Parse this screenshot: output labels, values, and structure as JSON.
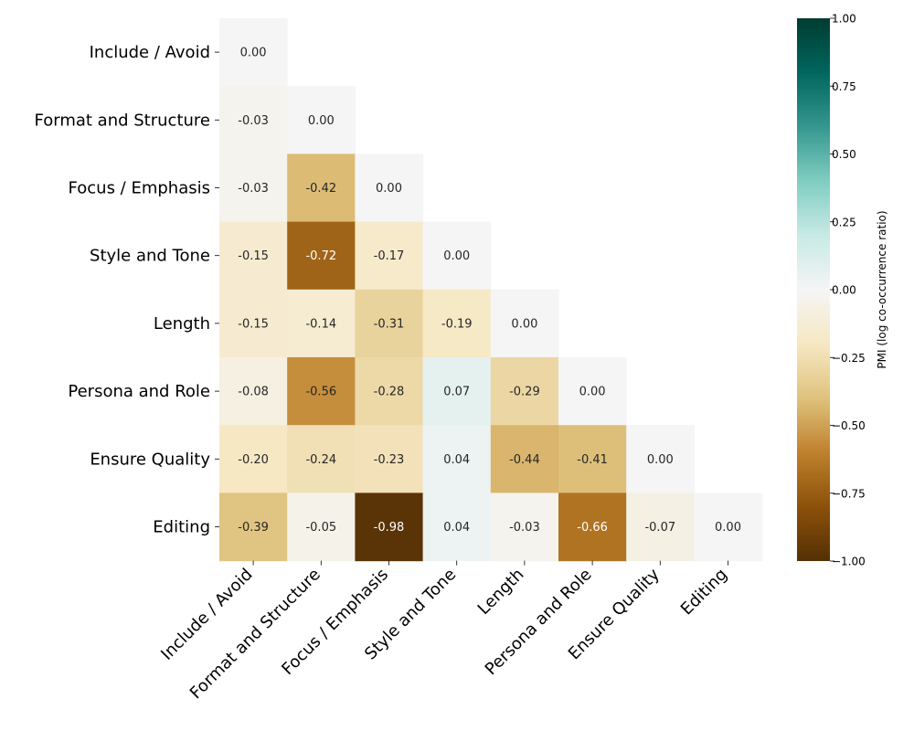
{
  "chart_data": {
    "type": "heatmap",
    "title": "",
    "xlabel": "",
    "ylabel": "",
    "categories": [
      "Include / Avoid",
      "Format and Structure",
      "Focus / Emphasis",
      "Style and Tone",
      "Length",
      "Persona and Role",
      "Ensure Quality",
      "Editing"
    ],
    "values": [
      [
        0.0
      ],
      [
        -0.03,
        0.0
      ],
      [
        -0.03,
        -0.42,
        0.0
      ],
      [
        -0.15,
        -0.72,
        -0.17,
        0.0
      ],
      [
        -0.15,
        -0.14,
        -0.31,
        -0.19,
        0.0
      ],
      [
        -0.08,
        -0.56,
        -0.28,
        0.07,
        -0.29,
        0.0
      ],
      [
        -0.2,
        -0.24,
        -0.23,
        0.04,
        -0.44,
        -0.41,
        0.0
      ],
      [
        -0.39,
        -0.05,
        -0.98,
        0.04,
        -0.03,
        -0.66,
        -0.07,
        0.0
      ]
    ],
    "mask": "upper-triangle",
    "colormap": "BrBG",
    "colorbar": {
      "label": "PMI (log co-occurrence ratio)",
      "vmin": -1.0,
      "vmax": 1.0,
      "ticks": [
        "1.00",
        "0.75",
        "0.50",
        "0.25",
        "0.00",
        "−0.25",
        "−0.50",
        "−0.75",
        "−1.00"
      ]
    }
  }
}
